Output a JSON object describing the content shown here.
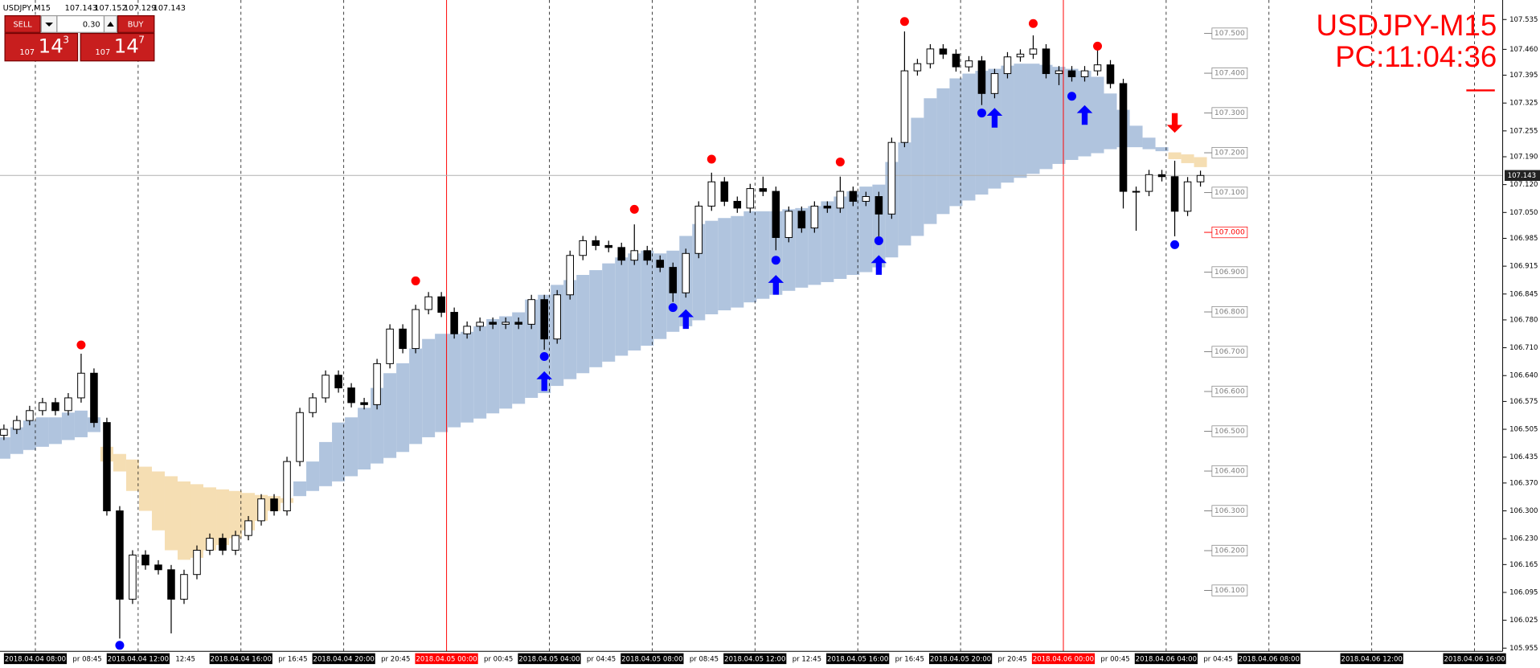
{
  "header": {
    "symbol": "USDJPY,M15",
    "ohlc": [
      107.143,
      107.152,
      107.129,
      107.143
    ]
  },
  "trade_panel": {
    "sell": "SELL",
    "buy": "BUY",
    "lot": "0.30",
    "sell_price": {
      "base": "107",
      "big": "14",
      "small": "3"
    },
    "buy_price": {
      "base": "107",
      "big": "14",
      "small": "7"
    }
  },
  "overlay": {
    "line1": "USDJPY-M15",
    "line2": "PC:11:04:36"
  },
  "chart_data": {
    "type": "candlestick",
    "open": [
      106.49,
      106.505,
      106.527,
      106.552,
      106.572,
      106.552,
      106.584,
      106.646,
      106.522,
      106.3,
      106.078,
      106.189,
      106.164,
      106.152,
      106.078,
      106.14,
      106.201,
      106.231,
      106.201,
      106.238,
      106.275,
      106.33,
      106.3,
      106.424,
      106.547,
      106.584,
      106.641,
      106.609,
      106.572,
      106.567,
      106.67,
      106.757,
      106.708,
      106.806,
      106.838,
      106.799,
      106.745,
      106.764,
      106.774,
      106.769,
      106.774,
      106.769,
      106.831,
      106.732,
      106.843,
      106.942,
      106.979,
      106.967,
      106.962,
      106.93,
      106.954,
      106.93,
      106.912,
      106.848,
      106.947,
      107.066,
      107.127,
      107.078,
      107.061,
      107.11,
      107.103,
      106.987,
      107.053,
      107.011,
      107.066,
      107.061,
      107.103,
      107.078,
      107.09,
      107.046,
      107.226,
      107.406,
      107.424,
      107.461,
      107.448,
      107.416,
      107.431,
      107.349,
      107.399,
      107.441,
      107.448,
      107.461,
      107.399,
      107.406,
      107.391,
      107.406,
      107.421,
      107.374,
      107.103,
      107.103,
      107.145,
      107.14,
      107.053,
      107.127
    ],
    "high": [
      106.517,
      106.539,
      106.564,
      106.584,
      106.584,
      106.596,
      106.695,
      106.658,
      106.534,
      106.312,
      106.201,
      106.201,
      106.176,
      106.164,
      106.152,
      106.213,
      106.243,
      106.243,
      106.25,
      106.287,
      106.342,
      106.342,
      106.436,
      106.559,
      106.596,
      106.653,
      106.653,
      106.621,
      106.584,
      106.682,
      106.769,
      106.769,
      106.818,
      106.85,
      106.85,
      106.811,
      106.776,
      106.786,
      106.786,
      106.786,
      106.786,
      106.843,
      106.843,
      106.855,
      106.954,
      106.991,
      106.991,
      106.979,
      106.974,
      107.02,
      106.966,
      106.942,
      106.924,
      106.959,
      107.078,
      107.15,
      107.139,
      107.09,
      107.122,
      107.14,
      107.115,
      107.065,
      107.065,
      107.078,
      107.078,
      107.14,
      107.115,
      107.102,
      107.102,
      107.238,
      107.505,
      107.436,
      107.473,
      107.473,
      107.46,
      107.443,
      107.443,
      107.411,
      107.453,
      107.46,
      107.495,
      107.473,
      107.418,
      107.418,
      107.418,
      107.46,
      107.433,
      107.386,
      107.115,
      107.157,
      107.157,
      107.18,
      107.139,
      107.155
    ],
    "low": [
      106.478,
      106.493,
      106.515,
      106.54,
      106.54,
      106.54,
      106.572,
      106.51,
      106.288,
      105.979,
      106.066,
      106.152,
      106.14,
      105.992,
      106.066,
      106.128,
      106.189,
      106.189,
      106.189,
      106.226,
      106.263,
      106.288,
      106.288,
      106.412,
      106.535,
      106.572,
      106.597,
      106.56,
      106.555,
      106.555,
      106.658,
      106.696,
      106.696,
      106.794,
      106.787,
      106.733,
      106.733,
      106.752,
      106.757,
      106.757,
      106.757,
      106.757,
      106.705,
      106.72,
      106.831,
      106.93,
      106.955,
      106.95,
      106.918,
      106.918,
      106.918,
      106.9,
      106.825,
      106.836,
      106.935,
      107.054,
      107.066,
      107.049,
      107.049,
      107.091,
      106.955,
      106.975,
      106.999,
      106.999,
      107.049,
      107.049,
      107.066,
      107.066,
      106.99,
      107.034,
      107.214,
      107.394,
      107.412,
      107.436,
      107.404,
      107.404,
      107.32,
      107.337,
      107.387,
      107.429,
      107.436,
      107.387,
      107.37,
      107.379,
      107.379,
      107.394,
      107.362,
      107.06,
      107.004,
      107.091,
      107.128,
      106.99,
      107.041,
      107.115
    ],
    "close": [
      106.505,
      106.527,
      106.552,
      106.572,
      106.552,
      106.584,
      106.646,
      106.522,
      106.3,
      106.078,
      106.189,
      106.164,
      106.152,
      106.078,
      106.14,
      106.201,
      106.231,
      106.201,
      106.238,
      106.275,
      106.33,
      106.3,
      106.424,
      106.547,
      106.584,
      106.641,
      106.609,
      106.572,
      106.567,
      106.67,
      106.757,
      106.708,
      106.806,
      106.838,
      106.799,
      106.745,
      106.764,
      106.774,
      106.769,
      106.774,
      106.769,
      106.831,
      106.732,
      106.843,
      106.942,
      106.979,
      106.967,
      106.962,
      106.93,
      106.954,
      106.93,
      106.912,
      106.848,
      106.947,
      107.066,
      107.127,
      107.078,
      107.061,
      107.11,
      107.103,
      106.987,
      107.053,
      107.011,
      107.066,
      107.061,
      107.103,
      107.078,
      107.09,
      107.046,
      107.226,
      107.406,
      107.424,
      107.461,
      107.448,
      107.416,
      107.431,
      107.349,
      107.399,
      107.441,
      107.448,
      107.461,
      107.399,
      107.406,
      107.391,
      107.406,
      107.421,
      107.374,
      107.103,
      107.103,
      107.145,
      107.14,
      107.053,
      107.127,
      107.143
    ],
    "up_color": "#ffffff",
    "down_color": "#000000",
    "cloud": {
      "up_color": "#b0c4de",
      "down_color": "#f5deb3",
      "a": [
        106.485,
        106.51,
        106.527,
        106.535,
        106.535,
        106.547,
        106.552,
        106.535,
        106.424,
        106.399,
        106.35,
        106.3,
        106.251,
        106.201,
        106.177,
        106.182,
        106.201,
        106.214,
        106.231,
        106.251,
        106.275,
        106.3,
        106.32,
        106.374,
        106.424,
        106.473,
        106.522,
        106.535,
        106.559,
        106.609,
        106.646,
        106.671,
        106.708,
        106.732,
        106.745,
        106.745,
        106.75,
        106.764,
        106.782,
        106.789,
        106.799,
        106.831,
        106.843,
        106.868,
        106.88,
        106.893,
        106.905,
        106.922,
        106.937,
        106.947,
        106.954,
        106.947,
        106.954,
        106.991,
        107.021,
        107.029,
        107.036,
        107.041,
        107.053,
        107.053,
        107.053,
        107.058,
        107.061,
        107.066,
        107.078,
        107.09,
        107.103,
        107.115,
        107.12,
        107.177,
        107.226,
        107.288,
        107.337,
        107.362,
        107.387,
        107.399,
        107.406,
        107.411,
        107.419,
        107.424,
        107.424,
        107.421,
        107.416,
        107.411,
        107.406,
        107.391,
        107.349,
        107.308,
        107.268,
        107.238,
        107.214,
        107.184,
        107.174,
        107.164
      ],
      "b": [
        106.431,
        106.443,
        106.453,
        106.461,
        106.468,
        106.478,
        106.485,
        106.498,
        106.461,
        106.443,
        106.429,
        106.411,
        106.399,
        106.387,
        106.374,
        106.367,
        106.359,
        106.354,
        106.35,
        106.345,
        106.34,
        106.337,
        106.332,
        106.337,
        106.35,
        106.362,
        106.374,
        106.387,
        106.404,
        106.419,
        106.433,
        106.448,
        106.468,
        106.485,
        106.498,
        106.51,
        106.522,
        106.532,
        106.545,
        106.557,
        106.569,
        106.584,
        106.596,
        106.614,
        106.631,
        106.646,
        106.661,
        106.675,
        106.69,
        106.703,
        106.715,
        106.732,
        106.75,
        106.764,
        106.779,
        106.794,
        106.804,
        106.811,
        106.824,
        106.833,
        106.843,
        106.853,
        106.861,
        106.868,
        106.875,
        106.883,
        106.893,
        106.9,
        106.912,
        106.937,
        106.967,
        106.991,
        107.021,
        107.046,
        107.066,
        107.08,
        107.095,
        107.11,
        107.125,
        107.137,
        107.147,
        107.159,
        107.172,
        107.182,
        107.191,
        107.199,
        107.209,
        107.214,
        107.214,
        107.209,
        107.204,
        107.201,
        107.196,
        107.189
      ]
    },
    "signals": [
      {
        "kind": "dot",
        "color": "#ff0000",
        "x": [
          6,
          32,
          49,
          55,
          65,
          70,
          80,
          85
        ],
        "values": [
          106.717,
          106.878,
          107.058,
          107.184,
          107.177,
          107.53,
          107.525,
          107.468
        ]
      },
      {
        "kind": "dot",
        "color": "#0000ff",
        "x": [
          9,
          42,
          52,
          60,
          68,
          76,
          83,
          91
        ],
        "values": [
          105.962,
          106.688,
          106.811,
          106.93,
          106.979,
          107.3,
          107.342,
          106.969
        ]
      },
      {
        "kind": "up-arrow",
        "color": "#0000ff",
        "x": [
          42,
          53,
          60,
          68,
          77,
          84
        ],
        "values": [
          106.626,
          106.782,
          106.868,
          106.918,
          107.288,
          107.295
        ]
      },
      {
        "kind": "down-arrow",
        "color": "#ff0000",
        "x": [
          91
        ],
        "values": [
          107.275
        ]
      }
    ],
    "ylim": [
      105.947,
      107.584
    ],
    "yticks": [
      107.535,
      {
        "value": 107.46,
        "label": "107.460"
      },
      107.395,
      107.325,
      107.255,
      {
        "value": 107.19,
        "label": "107.190"
      },
      {
        "value": 107.12,
        "label": "107.120"
      },
      {
        "value": 107.05,
        "label": "107.050"
      },
      106.985,
      106.915,
      106.845,
      {
        "value": 106.78,
        "label": "106.780"
      },
      {
        "value": 106.71,
        "label": "106.710"
      },
      {
        "value": 106.64,
        "label": "106.640"
      },
      106.575,
      106.505,
      106.435,
      {
        "value": 106.37,
        "label": "106.370"
      },
      {
        "value": 106.3,
        "label": "106.300"
      },
      {
        "value": 106.23,
        "label": "106.230"
      },
      106.165,
      106.095,
      106.025,
      105.955
    ],
    "levels": [
      {
        "value": 107.5,
        "label": "107.500"
      },
      {
        "value": 107.4,
        "label": "107.400"
      },
      {
        "value": 107.3,
        "label": "107.300"
      },
      {
        "value": 107.2,
        "label": "107.200"
      },
      {
        "value": 107.1,
        "label": "107.100"
      },
      {
        "value": 107.0,
        "label": "107.000",
        "color": "#ff0000"
      },
      {
        "value": 106.9,
        "label": "106.900"
      },
      {
        "value": 106.8,
        "label": "106.800"
      },
      {
        "value": 106.7,
        "label": "106.700"
      },
      {
        "value": 106.6,
        "label": "106.600"
      },
      {
        "value": 106.5,
        "label": "106.500"
      },
      {
        "value": 106.4,
        "label": "106.400"
      },
      {
        "value": 106.3,
        "label": "106.300"
      },
      {
        "value": 106.2,
        "label": "106.200"
      },
      {
        "value": 106.1,
        "label": "106.100"
      }
    ],
    "levels_color": "#808080",
    "current_price": 107.143,
    "time_labels": [
      "2018.04.04 08:00",
      "2018.04.04 12:00",
      "2018.04.04 16:00",
      "2018.04.04 20:00",
      "2018.04.05 00:00",
      "2018.04.05 04:00",
      "2018.04.05 08:00",
      "2018.04.05 12:00",
      "2018.04.05 16:00",
      "2018.04.05 20:00",
      "2018.04.06 00:00",
      "2018.04.06 04:00",
      "2018.04.06 08:00",
      "2018.04.06 12:00",
      "2018.04.06 16:00"
    ],
    "time_sublabels": [
      "pr 08:45",
      "12:45",
      "pr 16:45",
      "pr 20:45",
      "pr 00:45",
      "pr 04:45",
      "pr 08:45",
      "pr 12:45",
      "pr 16:45",
      "pr 20:45",
      "pr 00:45",
      "pr 04:45"
    ],
    "separators": [
      4,
      10
    ],
    "separator_color": "#ff0000"
  }
}
